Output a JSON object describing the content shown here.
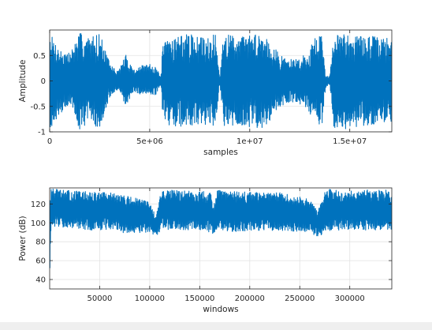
{
  "figure": {
    "background": "#ffffff",
    "strip_color": "#efefef"
  },
  "chart_data": [
    {
      "type": "line",
      "title": "",
      "xlabel": "samples",
      "ylabel": "Amplitude",
      "xlim": [
        0,
        17100000
      ],
      "ylim": [
        -1,
        1
      ],
      "grid": true,
      "line_color": "#0072bd",
      "xticks": [
        {
          "value": 0,
          "label": "0"
        },
        {
          "value": 5000000,
          "label": "5e+06"
        },
        {
          "value": 10000000,
          "label": "1e+07"
        },
        {
          "value": 15000000,
          "label": "1.5e+07"
        }
      ],
      "yticks": [
        {
          "value": -1,
          "label": "-1"
        },
        {
          "value": -0.5,
          "label": "-0.5"
        },
        {
          "value": 0,
          "label": "0"
        },
        {
          "value": 0.5,
          "label": "0.5"
        }
      ],
      "envelope": {
        "x": [
          0,
          500000,
          1000000,
          1500000,
          2000000,
          2500000,
          3000000,
          3400000,
          3800000,
          4200000,
          4600000,
          5000000,
          5300000,
          5550000,
          5650000,
          6000000,
          6500000,
          7000000,
          7500000,
          8000000,
          8300000,
          8500000,
          8700000,
          9000000,
          9500000,
          10000000,
          10500000,
          11000000,
          11500000,
          12000000,
          12500000,
          12900000,
          13300000,
          13600000,
          13800000,
          14000000,
          14200000,
          14500000,
          15000000,
          15500000,
          16000000,
          16500000,
          17100000
        ],
        "upper": [
          0.95,
          0.62,
          0.55,
          0.95,
          0.85,
          0.95,
          0.35,
          0.18,
          0.52,
          0.22,
          0.3,
          0.33,
          0.3,
          0.06,
          0.7,
          0.88,
          0.9,
          0.92,
          0.85,
          0.9,
          0.9,
          0.04,
          0.95,
          0.92,
          0.88,
          0.9,
          0.94,
          0.83,
          0.5,
          0.42,
          0.45,
          0.55,
          0.9,
          0.9,
          0.12,
          0.1,
          0.88,
          0.92,
          0.95,
          0.88,
          0.9,
          0.85,
          0.85
        ],
        "lower": [
          -0.95,
          -0.65,
          -0.45,
          -0.95,
          -0.8,
          -0.95,
          -0.33,
          -0.18,
          -0.5,
          -0.2,
          -0.28,
          -0.31,
          -0.28,
          -0.06,
          -0.7,
          -0.88,
          -0.9,
          -0.92,
          -0.85,
          -0.88,
          -0.9,
          -0.04,
          -0.95,
          -0.92,
          -0.88,
          -0.9,
          -0.94,
          -0.83,
          -0.5,
          -0.42,
          -0.45,
          -0.55,
          -0.9,
          -0.9,
          -0.12,
          -0.1,
          -0.92,
          -0.95,
          -0.95,
          -0.88,
          -0.9,
          -0.85,
          -0.88
        ]
      }
    },
    {
      "type": "line",
      "title": "",
      "xlabel": "windows",
      "ylabel": "Power (dB)",
      "xlim": [
        0,
        342000
      ],
      "ylim": [
        30,
        137
      ],
      "grid": true,
      "line_color": "#0072bd",
      "xticks": [
        {
          "value": 50000,
          "label": "50000"
        },
        {
          "value": 100000,
          "label": "100000"
        },
        {
          "value": 150000,
          "label": "150000"
        },
        {
          "value": 200000,
          "label": "200000"
        },
        {
          "value": 250000,
          "label": "250000"
        },
        {
          "value": 300000,
          "label": "300000"
        }
      ],
      "yticks": [
        {
          "value": 40,
          "label": "40"
        },
        {
          "value": 60,
          "label": "60"
        },
        {
          "value": 80,
          "label": "80"
        },
        {
          "value": 100,
          "label": "100"
        },
        {
          "value": 120,
          "label": "120"
        }
      ],
      "envelope": {
        "x": [
          0,
          1500,
          3000,
          20000,
          40000,
          60000,
          80000,
          100000,
          106000,
          112000,
          120000,
          140000,
          160000,
          165000,
          168000,
          172000,
          190000,
          210000,
          230000,
          260000,
          268000,
          276000,
          285000,
          300000,
          320000,
          342000
        ],
        "upper": [
          125,
          136,
          136,
          134,
          133,
          132,
          128,
          122,
          108,
          135,
          135,
          134,
          133,
          120,
          136,
          134,
          133,
          132,
          132,
          125,
          112,
          136,
          136,
          135,
          135,
          135
        ],
        "lower": [
          30,
          95,
          95,
          95,
          92,
          93,
          88,
          90,
          85,
          93,
          93,
          92,
          90,
          88,
          95,
          92,
          90,
          92,
          92,
          90,
          85,
          90,
          92,
          93,
          92,
          92
        ]
      }
    }
  ]
}
